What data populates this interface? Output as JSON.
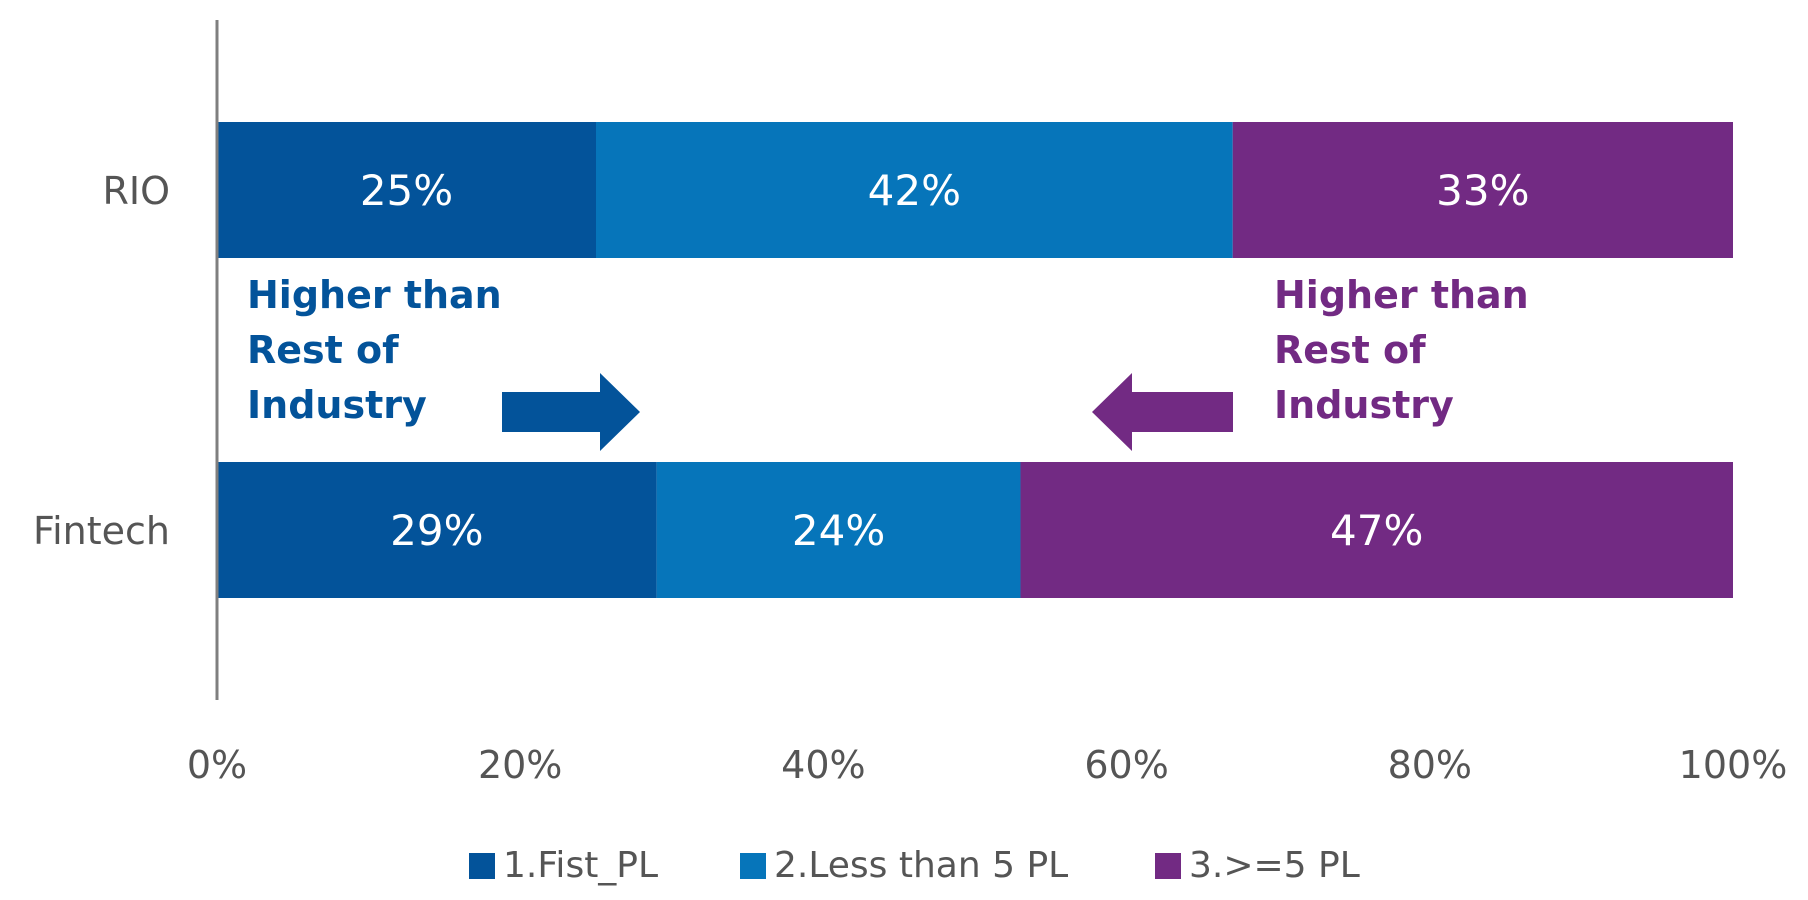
{
  "chart_data": {
    "type": "bar",
    "orientation": "horizontal",
    "stacked": true,
    "normalized": true,
    "categories": [
      "RIO",
      "Fintech"
    ],
    "series": [
      {
        "name": "1.Fist_PL",
        "values": [
          25,
          29
        ],
        "labels": [
          "25%",
          "29%"
        ],
        "color": "#03539a"
      },
      {
        "name": "2.Less than 5 PL",
        "values": [
          42,
          24
        ],
        "labels": [
          "42%",
          "24%"
        ],
        "color": "#0675ba"
      },
      {
        "name": "3.>=5 PL",
        "values": [
          33,
          47
        ],
        "labels": [
          "33%",
          "47%"
        ],
        "color": "#722a83"
      }
    ],
    "xlim": [
      0,
      100
    ],
    "xticks": [
      0,
      20,
      40,
      60,
      80,
      100
    ],
    "xtick_labels": [
      "0%",
      "20%",
      "40%",
      "60%",
      "80%",
      "100%"
    ],
    "legend_position": "bottom",
    "annotations": [
      {
        "lines": [
          "Higher than",
          "Rest of",
          "Industry"
        ],
        "color": "#03539a",
        "side": "left",
        "arrow": "right"
      },
      {
        "lines": [
          "Higher than",
          "Rest of",
          "Industry"
        ],
        "color": "#722a83",
        "side": "right",
        "arrow": "left"
      }
    ]
  }
}
